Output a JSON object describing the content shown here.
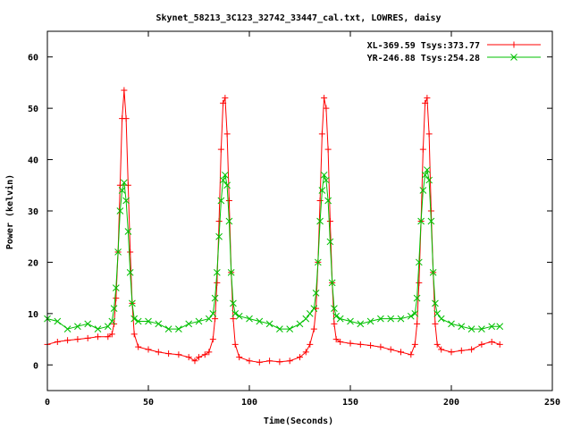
{
  "chart_data": {
    "type": "line",
    "title": "Skynet_58213_3C123_32742_33447_cal.txt, LOWRES, daisy",
    "xlabel": "Time(Seconds)",
    "ylabel": "Power (kelvin)",
    "xlim": [
      0,
      250
    ],
    "ylim": [
      -5,
      65
    ],
    "xticks": [
      0,
      50,
      100,
      150,
      200,
      250
    ],
    "yticks": [
      0,
      10,
      20,
      30,
      40,
      50,
      60
    ],
    "legend_position": "top-right",
    "series": [
      {
        "name": "XL-369.59 Tsys:373.77",
        "color": "#ff0000",
        "marker": "plus",
        "x": [
          0,
          5,
          10,
          15,
          20,
          25,
          30,
          32,
          33,
          34,
          35,
          36,
          37,
          38,
          39,
          40,
          41,
          42,
          43,
          45,
          50,
          55,
          60,
          65,
          70,
          73,
          75,
          78,
          80,
          82,
          83,
          84,
          85,
          86,
          87,
          88,
          89,
          90,
          91,
          92,
          93,
          95,
          100,
          105,
          110,
          115,
          120,
          125,
          128,
          130,
          132,
          133,
          134,
          135,
          136,
          137,
          138,
          139,
          140,
          141,
          142,
          143,
          145,
          150,
          155,
          160,
          165,
          170,
          175,
          180,
          182,
          183,
          184,
          185,
          186,
          187,
          188,
          189,
          190,
          191,
          192,
          193,
          195,
          200,
          205,
          210,
          215,
          220,
          224
        ],
        "y": [
          4,
          4.5,
          4.8,
          5,
          5.2,
          5.5,
          5.5,
          6,
          8,
          13,
          22,
          35,
          48,
          53.5,
          48,
          35,
          22,
          12,
          6,
          3.5,
          3,
          2.5,
          2.2,
          2,
          1.5,
          0.8,
          1.5,
          2,
          2.5,
          5,
          9,
          16,
          28,
          42,
          51,
          52,
          45,
          32,
          18,
          9,
          4,
          1.5,
          0.8,
          0.5,
          0.8,
          0.6,
          0.8,
          1.5,
          2.5,
          4,
          7,
          11,
          20,
          32,
          45,
          52,
          50,
          42,
          28,
          16,
          8,
          5,
          4.5,
          4.2,
          4,
          3.8,
          3.5,
          3,
          2.5,
          2,
          4,
          8,
          16,
          28,
          42,
          51,
          52,
          45,
          30,
          18,
          8,
          4,
          3,
          2.5,
          2.8,
          3,
          4,
          4.5,
          4
        ]
      },
      {
        "name": "YR-246.88 Tsys:254.28",
        "color": "#00c000",
        "marker": "cross",
        "x": [
          0,
          5,
          10,
          15,
          20,
          25,
          30,
          32,
          33,
          34,
          35,
          36,
          37,
          38,
          39,
          40,
          41,
          42,
          43,
          45,
          50,
          55,
          60,
          65,
          70,
          75,
          80,
          82,
          83,
          84,
          85,
          86,
          87,
          88,
          89,
          90,
          91,
          92,
          93,
          95,
          100,
          105,
          110,
          115,
          120,
          125,
          128,
          130,
          132,
          133,
          134,
          135,
          136,
          137,
          138,
          139,
          140,
          141,
          142,
          143,
          145,
          150,
          155,
          160,
          165,
          170,
          175,
          180,
          182,
          183,
          184,
          185,
          186,
          187,
          188,
          189,
          190,
          191,
          192,
          193,
          195,
          200,
          205,
          210,
          215,
          220,
          224
        ],
        "y": [
          9,
          8.5,
          7,
          7.5,
          8,
          7,
          7.5,
          8.5,
          11,
          15,
          22,
          30,
          34,
          35.5,
          32,
          26,
          18,
          12,
          9,
          8.5,
          8.5,
          8,
          7,
          7,
          8,
          8.5,
          9,
          10,
          13,
          18,
          25,
          32,
          36,
          37,
          35,
          28,
          18,
          12,
          10,
          9.5,
          9,
          8.5,
          8,
          7,
          7,
          8,
          9,
          10,
          11,
          14,
          20,
          28,
          34,
          37,
          36,
          32,
          24,
          16,
          11,
          9.5,
          9,
          8.5,
          8,
          8.5,
          9,
          9,
          9,
          9.5,
          10,
          13,
          20,
          28,
          34,
          37,
          38,
          36,
          28,
          18,
          12,
          10,
          9,
          8,
          7.5,
          7,
          7,
          7.5,
          7.5
        ]
      }
    ]
  }
}
